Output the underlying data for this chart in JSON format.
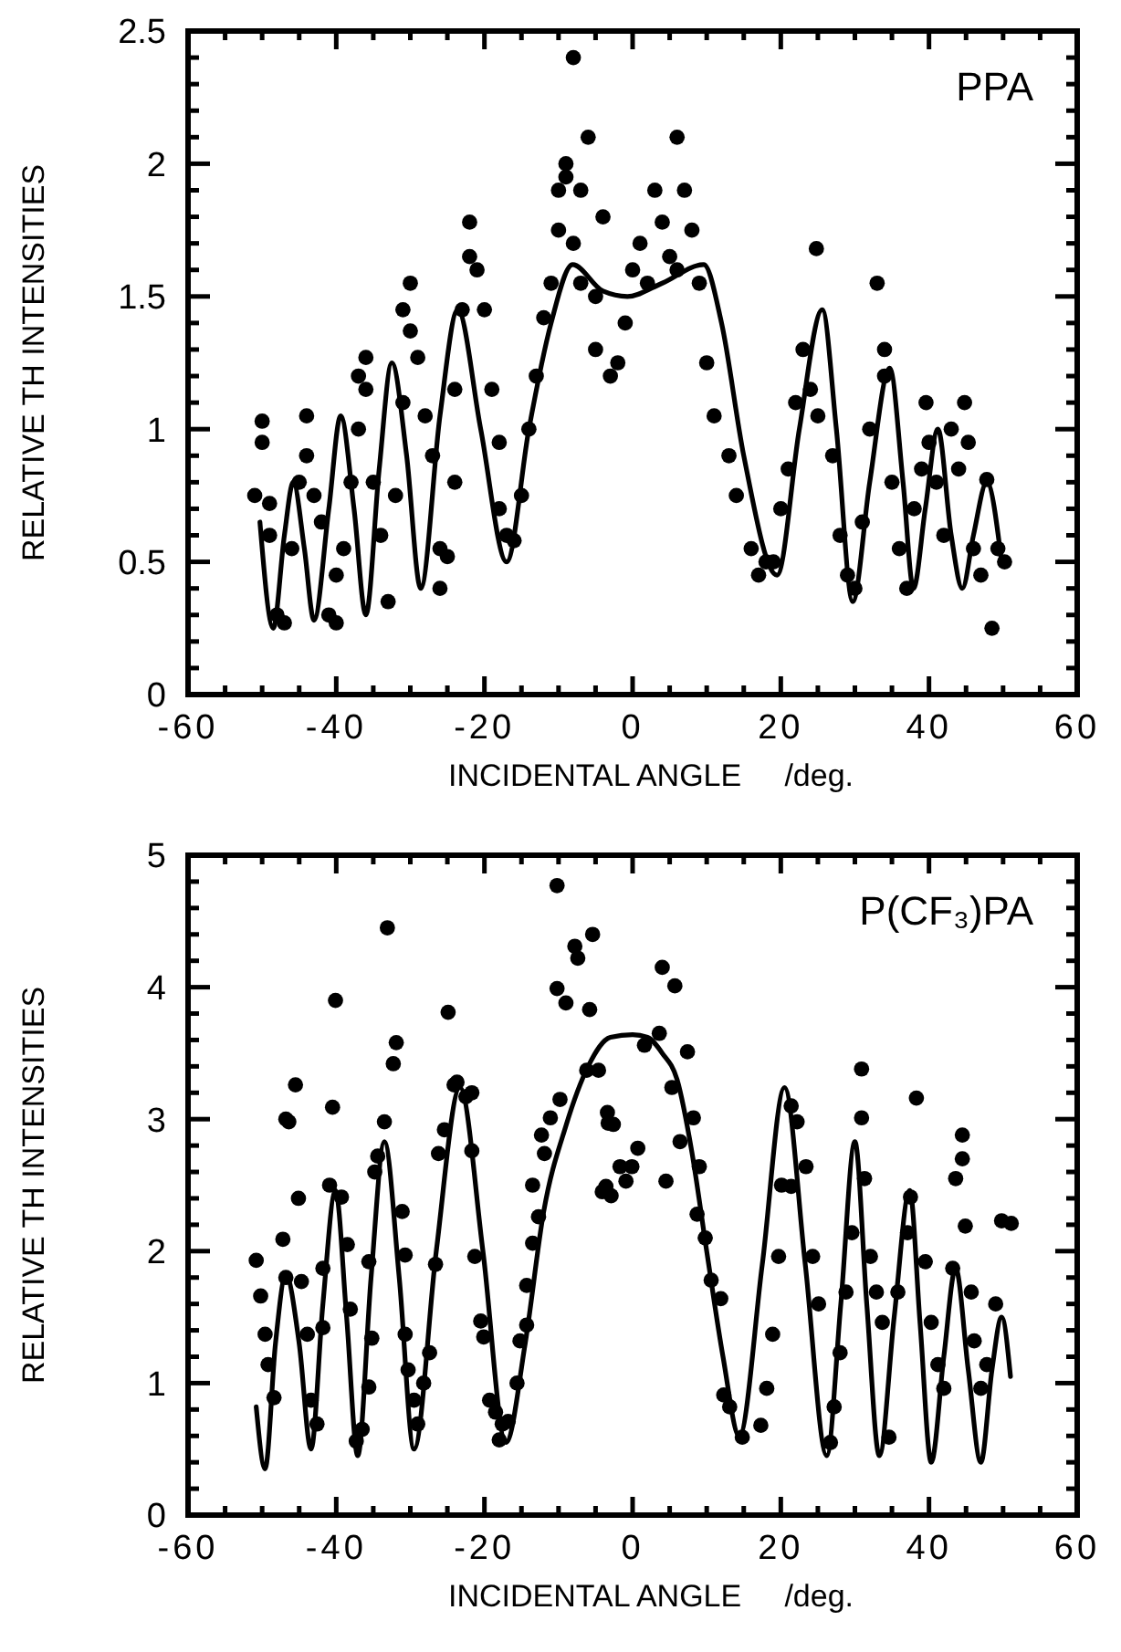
{
  "chart_data": [
    {
      "type": "scatter",
      "xlabel": "INCIDENTAL ANGLE     /deg.",
      "ylabel": "RELATIVE TH INTENSITIES",
      "annotations": [
        "PPA"
      ],
      "xlim": [
        -60,
        60
      ],
      "ylim": [
        0,
        2.5
      ],
      "xticks": [
        -60,
        {
          "value": -55,
          "label": null
        },
        {
          "value": -50,
          "label": null
        },
        {
          "value": -45,
          "label": null
        },
        -40,
        {
          "value": -35,
          "label": null
        },
        {
          "value": -30,
          "label": null
        },
        {
          "value": -25,
          "label": null
        },
        -20,
        {
          "value": -15,
          "label": null
        },
        {
          "value": -10,
          "label": null
        },
        {
          "value": -5,
          "label": null
        },
        0,
        {
          "value": 5,
          "label": null
        },
        {
          "value": 10,
          "label": null
        },
        {
          "value": 15,
          "label": null
        },
        20,
        {
          "value": 25,
          "label": null
        },
        {
          "value": 30,
          "label": null
        },
        {
          "value": 35,
          "label": null
        },
        40,
        {
          "value": 45,
          "label": null
        },
        {
          "value": 50,
          "label": null
        },
        {
          "value": 55,
          "label": null
        },
        60
      ],
      "yticks": [
        0,
        {
          "value": 0.1,
          "label": null
        },
        {
          "value": 0.2,
          "label": null
        },
        {
          "value": 0.3,
          "label": null
        },
        {
          "value": 0.4,
          "label": null
        },
        0.5,
        {
          "value": 0.6,
          "label": null
        },
        {
          "value": 0.7,
          "label": null
        },
        {
          "value": 0.8,
          "label": null
        },
        {
          "value": 0.9,
          "label": null
        },
        1,
        {
          "value": 1.1,
          "label": null
        },
        {
          "value": 1.2,
          "label": null
        },
        {
          "value": 1.3,
          "label": null
        },
        {
          "value": 1.4,
          "label": null
        },
        1.5,
        {
          "value": 1.6,
          "label": null
        },
        {
          "value": 1.7,
          "label": null
        },
        {
          "value": 1.8,
          "label": null
        },
        {
          "value": 1.9,
          "label": null
        },
        2,
        {
          "value": 2.1,
          "label": null
        },
        {
          "value": 2.2,
          "label": null
        },
        {
          "value": 2.3,
          "label": null
        },
        {
          "value": 2.4,
          "label": null
        },
        2.5
      ],
      "series": [
        {
          "marker": "circle",
          "color": "#000000",
          "x": [
            -51,
            -50,
            -50,
            -49,
            -49,
            -48,
            -47,
            -46,
            -45,
            -44,
            -44,
            -43,
            -42,
            -41,
            -40,
            -40,
            -39,
            -38,
            -37,
            -37,
            -36,
            -36,
            -35,
            -34,
            -33,
            -32,
            -31,
            -31,
            -30,
            -30,
            -29,
            -28,
            -27,
            -26,
            -26,
            -25,
            -24,
            -24,
            -23,
            -22,
            -22,
            -21,
            -20,
            -19,
            -18,
            -18,
            -17,
            -16,
            -15,
            -14,
            -13,
            -12,
            -11,
            -10,
            -10,
            -9,
            -9,
            -8,
            -8,
            -7,
            -7,
            -6,
            -5,
            -5,
            -4,
            -3,
            -2,
            -1,
            0,
            1,
            2,
            3,
            4,
            5,
            6,
            6,
            7,
            8,
            9,
            10,
            11,
            13,
            14,
            16,
            17,
            18,
            19,
            20,
            21,
            22,
            23,
            24,
            24.8,
            25,
            27,
            28,
            29,
            30,
            31,
            32,
            33,
            34,
            34,
            35,
            36,
            37,
            38,
            39,
            39.6,
            40,
            41,
            42,
            43,
            44,
            44.8,
            45.3,
            46,
            47,
            47.8,
            48.5,
            49.3,
            50.2
          ],
          "values": [
            0.75,
            1.03,
            0.95,
            0.72,
            0.6,
            0.3,
            0.27,
            0.55,
            0.8,
            1.05,
            0.9,
            0.75,
            0.65,
            0.3,
            0.27,
            0.45,
            0.55,
            0.8,
            1.0,
            1.2,
            1.15,
            1.27,
            0.8,
            0.6,
            0.35,
            0.75,
            1.1,
            1.45,
            1.55,
            1.37,
            1.27,
            1.05,
            0.9,
            0.55,
            0.4,
            0.52,
            0.8,
            1.15,
            1.45,
            1.78,
            1.65,
            1.6,
            1.45,
            1.15,
            0.95,
            0.7,
            0.6,
            0.58,
            0.75,
            1.0,
            1.2,
            1.42,
            1.55,
            1.9,
            1.75,
            2.0,
            1.95,
            1.7,
            2.4,
            1.55,
            1.9,
            2.1,
            1.3,
            1.5,
            1.8,
            1.2,
            1.25,
            1.4,
            1.6,
            1.7,
            1.55,
            1.9,
            1.78,
            1.65,
            2.1,
            1.6,
            1.9,
            1.75,
            1.55,
            1.25,
            1.05,
            0.9,
            0.75,
            0.55,
            0.45,
            0.5,
            0.5,
            0.7,
            0.85,
            1.1,
            1.3,
            1.15,
            1.68,
            1.05,
            0.9,
            0.6,
            0.45,
            0.4,
            0.65,
            1.0,
            1.55,
            1.3,
            1.2,
            0.8,
            0.55,
            0.4,
            0.7,
            0.85,
            1.1,
            0.95,
            0.8,
            0.6,
            1.0,
            0.85,
            1.1,
            0.95,
            0.55,
            0.45,
            0.81,
            0.25,
            0.55,
            0.5
          ]
        },
        {
          "type": "line",
          "color": "#000000",
          "x": [
            -50.3,
            -48.5,
            -47,
            -45.8,
            -44.3,
            -43,
            -41,
            -39.4,
            -37.6,
            -36,
            -34.2,
            -32.5,
            -30.5,
            -28.6,
            -26,
            -23.6,
            -20.5,
            -17,
            -14,
            -11,
            -8.1,
            -4,
            -0.7,
            4,
            9.6,
            12,
            15,
            19.5,
            22.5,
            25.6,
            27.5,
            29.7,
            32,
            34.7,
            36.5,
            37.9,
            39.5,
            41.2,
            43,
            44.5,
            46,
            47.8,
            49.8
          ],
          "values": [
            0.65,
            0.25,
            0.6,
            0.8,
            0.55,
            0.28,
            0.7,
            1.05,
            0.7,
            0.3,
            0.85,
            1.25,
            0.9,
            0.4,
            1.05,
            1.45,
            1.0,
            0.5,
            1.0,
            1.4,
            1.62,
            1.52,
            1.5,
            1.55,
            1.62,
            1.4,
            0.9,
            0.45,
            1.0,
            1.45,
            1.0,
            0.35,
            0.8,
            1.23,
            0.8,
            0.4,
            0.7,
            1.0,
            0.6,
            0.4,
            0.6,
            0.8,
            0.5
          ]
        }
      ]
    },
    {
      "type": "scatter",
      "xlabel": "INCIDENTAL ANGLE     /deg.",
      "ylabel": "RELATIVE TH INTENSITIES",
      "annotations": [
        "P(CF₃)PA"
      ],
      "xlim": [
        -60,
        60
      ],
      "ylim": [
        0,
        5
      ],
      "xticks": [
        -60,
        {
          "value": -55,
          "label": null
        },
        {
          "value": -50,
          "label": null
        },
        {
          "value": -45,
          "label": null
        },
        -40,
        {
          "value": -35,
          "label": null
        },
        {
          "value": -30,
          "label": null
        },
        {
          "value": -25,
          "label": null
        },
        -20,
        {
          "value": -15,
          "label": null
        },
        {
          "value": -10,
          "label": null
        },
        {
          "value": -5,
          "label": null
        },
        0,
        {
          "value": 5,
          "label": null
        },
        {
          "value": 10,
          "label": null
        },
        {
          "value": 15,
          "label": null
        },
        20,
        {
          "value": 25,
          "label": null
        },
        {
          "value": 30,
          "label": null
        },
        {
          "value": 35,
          "label": null
        },
        40,
        {
          "value": 45,
          "label": null
        },
        {
          "value": 50,
          "label": null
        },
        {
          "value": 55,
          "label": null
        },
        60
      ],
      "yticks": [
        0,
        {
          "value": 0.2,
          "label": null
        },
        {
          "value": 0.4,
          "label": null
        },
        {
          "value": 0.6,
          "label": null
        },
        {
          "value": 0.8,
          "label": null
        },
        1,
        {
          "value": 1.2,
          "label": null
        },
        {
          "value": 1.4,
          "label": null
        },
        {
          "value": 1.6,
          "label": null
        },
        {
          "value": 1.8,
          "label": null
        },
        2,
        {
          "value": 2.2,
          "label": null
        },
        {
          "value": 2.4,
          "label": null
        },
        {
          "value": 2.6,
          "label": null
        },
        {
          "value": 2.8,
          "label": null
        },
        3,
        {
          "value": 3.2,
          "label": null
        },
        {
          "value": 3.4,
          "label": null
        },
        {
          "value": 3.6,
          "label": null
        },
        {
          "value": 3.8,
          "label": null
        },
        4,
        {
          "value": 4.2,
          "label": null
        },
        {
          "value": 4.4,
          "label": null
        },
        {
          "value": 4.6,
          "label": null
        },
        {
          "value": 4.8,
          "label": null
        },
        5
      ],
      "series": [
        {
          "marker": "circle",
          "color": "#000000",
          "x": [
            -50.8,
            -50.2,
            -49.6,
            -49.2,
            -48.4,
            -47.2,
            -46.8,
            -45.5,
            -46.8,
            -46.4,
            -45.1,
            -44.7,
            -43.9,
            -43.4,
            -42.6,
            -41.8,
            -41.8,
            -40.9,
            -40.1,
            -40.5,
            -39.3,
            -38.5,
            -38.1,
            -37.3,
            -36.5,
            -35.6,
            -35.2,
            -35.6,
            -34.8,
            -34.4,
            -33.5,
            -33.1,
            -31.9,
            -32.3,
            -31.1,
            -30.7,
            -30.7,
            -30.3,
            -29.5,
            -29,
            -28.2,
            -27.4,
            -26.6,
            -26.2,
            -25.4,
            -24.9,
            -24.1,
            -23.7,
            -22.5,
            -21.7,
            -21.7,
            -21.3,
            -20.5,
            -20.1,
            -19.3,
            -18.5,
            -17.6,
            -16.8,
            -18,
            -15.6,
            -15.2,
            -14.3,
            -14.3,
            -13.5,
            -12.7,
            -13.5,
            -11.9,
            -12.3,
            -11.1,
            -9.8,
            -10.2,
            -10.2,
            -9,
            -7.8,
            -7.4,
            -5.8,
            -6.2,
            -4.6,
            -5.4,
            -4.1,
            -2.9,
            -3.3,
            -3.4,
            -2.6,
            -1.7,
            -0.9,
            -0.1,
            0.7,
            -3.6,
            4.5,
            1.6,
            3.6,
            4,
            5.7,
            7.4,
            5.3,
            6.4,
            8.2,
            9,
            8.7,
            9.8,
            10.6,
            11.9,
            12.3,
            13.1,
            14.8,
            17.3,
            18.1,
            18.9,
            19.7,
            20.1,
            21.4,
            22.2,
            23.4,
            21.4,
            24.3,
            25.1,
            26.7,
            27.2,
            28,
            28.8,
            29.6,
            30.9,
            30.9,
            31.3,
            32.1,
            32.9,
            33.7,
            34.6,
            35.8,
            37.1,
            37.5,
            38.3,
            39.5,
            40.3,
            41.2,
            42,
            43.2,
            44.5,
            44.5,
            43.6,
            44.9,
            45.7,
            46.1,
            47,
            47.8,
            49,
            49.8,
            51.1
          ],
          "values": [
            1.93,
            1.66,
            1.37,
            1.14,
            0.89,
            2.09,
            1.8,
            3.26,
            3.0,
            2.98,
            2.4,
            1.77,
            1.37,
            0.87,
            0.69,
            1.42,
            1.87,
            2.5,
            3.9,
            3.09,
            2.41,
            2.05,
            1.56,
            0.56,
            0.65,
            0.97,
            1.34,
            1.92,
            2.6,
            2.72,
            2.98,
            4.45,
            3.58,
            3.42,
            2.3,
            1.97,
            1.37,
            1.1,
            0.87,
            0.69,
            1.0,
            1.23,
            1.9,
            2.74,
            2.92,
            3.81,
            3.26,
            3.28,
            3.17,
            3.2,
            2.76,
            1.96,
            1.47,
            1.35,
            0.87,
            0.78,
            0.69,
            0.71,
            0.57,
            1.0,
            1.32,
            1.44,
            1.74,
            2.06,
            2.26,
            2.5,
            2.74,
            2.88,
            3.01,
            3.15,
            4.77,
            3.99,
            3.88,
            4.31,
            4.22,
            3.83,
            3.37,
            3.37,
            4.4,
            2.45,
            2.42,
            2.97,
            3.05,
            2.96,
            2.64,
            2.53,
            2.64,
            2.78,
            2.49,
            2.53,
            3.56,
            3.65,
            4.15,
            4.01,
            3.51,
            3.24,
            2.83,
            3.01,
            2.64,
            2.28,
            2.1,
            1.78,
            1.64,
            0.91,
            0.82,
            0.59,
            0.68,
            0.96,
            1.37,
            1.96,
            2.5,
            3.1,
            2.98,
            2.64,
            2.49,
            1.96,
            1.6,
            0.55,
            0.82,
            1.23,
            1.69,
            2.14,
            3.38,
            3.01,
            2.55,
            1.96,
            1.69,
            1.46,
            0.59,
            1.69,
            2.14,
            2.41,
            3.16,
            1.92,
            1.46,
            1.14,
            0.96,
            1.87,
            2.88,
            2.7,
            2.55,
            2.19,
            1.69,
            1.32,
            0.96,
            1.14,
            1.6,
            2.23,
            2.21
          ]
        },
        {
          "type": "line",
          "color": "#000000",
          "x": [
            -50.8,
            -49.6,
            -48.2,
            -46.8,
            -45,
            -43.4,
            -41.8,
            -40.1,
            -38.6,
            -37.1,
            -35.3,
            -33.5,
            -31.5,
            -29.5,
            -26.5,
            -23.3,
            -20.2,
            -17.1,
            -14.5,
            -12,
            -9,
            -6,
            -3,
            0,
            2,
            4,
            6,
            8,
            10,
            12.2,
            14.4,
            17.5,
            20.5,
            23.3,
            26.2,
            28.1,
            30,
            31.6,
            33.3,
            35.3,
            37.4,
            38.8,
            40.3,
            42,
            43.6,
            45.3,
            47,
            48.5,
            49.8,
            51
          ],
          "values": [
            0.82,
            0.35,
            1.3,
            1.82,
            1.3,
            0.5,
            1.6,
            2.46,
            1.5,
            0.45,
            1.8,
            2.83,
            1.8,
            0.5,
            2.0,
            3.24,
            2.0,
            0.55,
            1.3,
            2.3,
            2.95,
            3.4,
            3.62,
            3.64,
            3.62,
            3.5,
            3.3,
            2.75,
            2.0,
            1.2,
            0.6,
            1.9,
            3.24,
            1.9,
            0.45,
            1.6,
            2.83,
            1.6,
            0.45,
            1.5,
            2.46,
            1.45,
            0.4,
            1.2,
            1.87,
            1.1,
            0.4,
            1.1,
            1.5,
            1.05
          ]
        }
      ]
    }
  ]
}
